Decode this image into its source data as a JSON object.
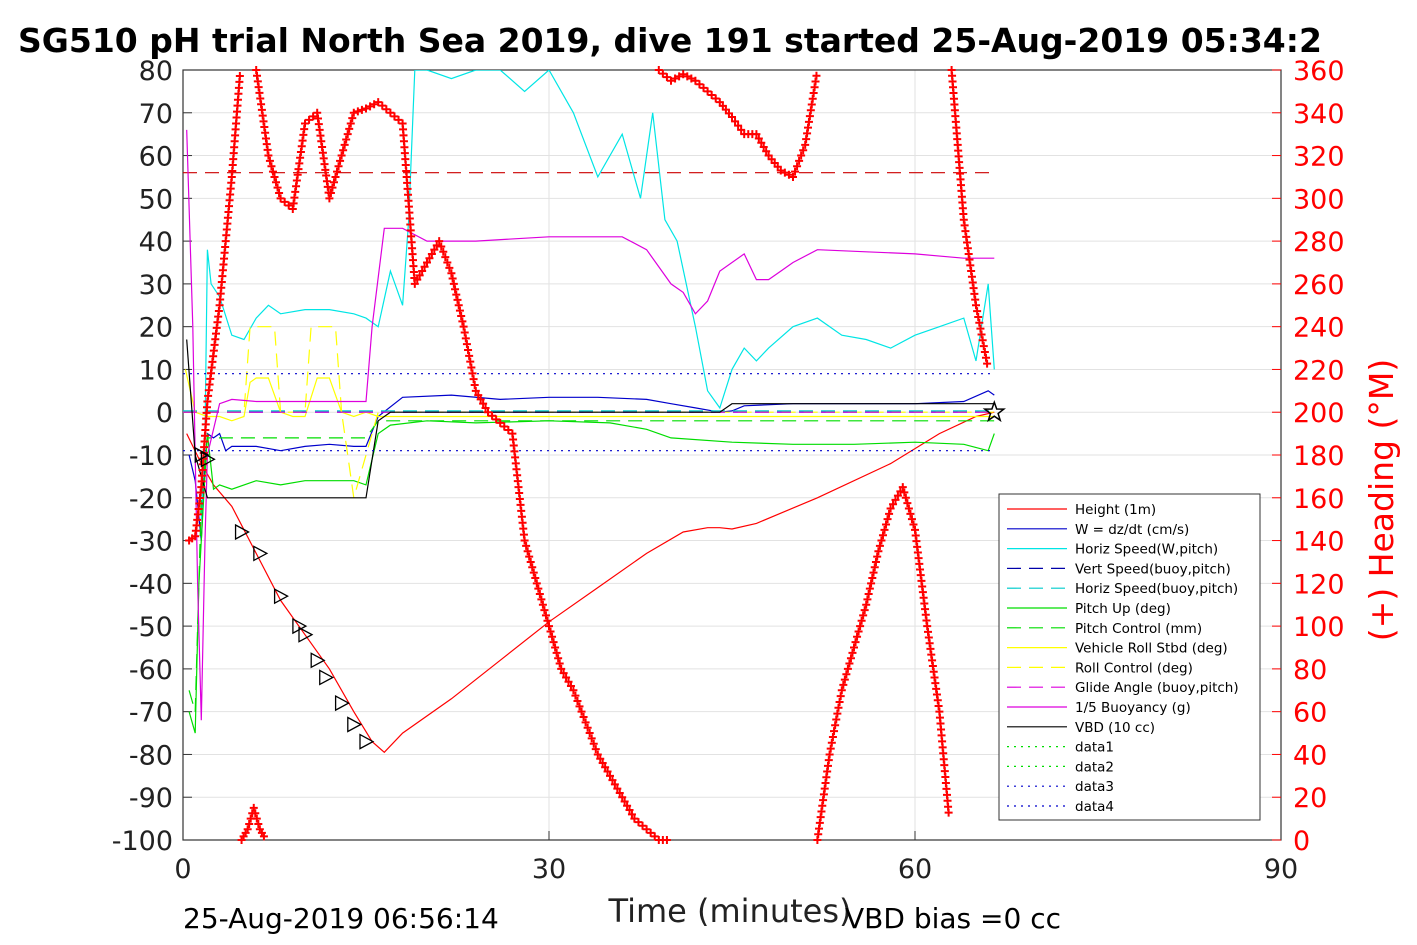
{
  "figure": {
    "title": "SG510 pH trial North Sea 2019, dive 191 started 25-Aug-2019 05:34:2",
    "footer_left": "25-Aug-2019 06:56:14",
    "footer_right": "VBD bias =0 cc"
  },
  "chart_data": {
    "type": "line",
    "xlabel": "Time (minutes)",
    "ylabel": "",
    "ylabel_right": "(+) Heading (°M)",
    "xlim": [
      0,
      90
    ],
    "ylim": [
      -100,
      80
    ],
    "ylim_right": [
      0,
      360
    ],
    "xticks": [
      0,
      30,
      60,
      90
    ],
    "yticks": [
      -100,
      -90,
      -80,
      -70,
      -60,
      -50,
      -40,
      -30,
      -20,
      -10,
      0,
      10,
      20,
      30,
      40,
      50,
      60,
      70,
      80
    ],
    "yticks_right": [
      0,
      20,
      40,
      60,
      80,
      100,
      120,
      140,
      160,
      180,
      200,
      220,
      240,
      260,
      280,
      300,
      320,
      340,
      360
    ],
    "grid": true,
    "legend_position": "right",
    "colors": {
      "red": "#ff0000",
      "blue": "#0000cc",
      "cyan": "#00e5e5",
      "green": "#00dd00",
      "yellow": "#ffff00",
      "magenta": "#dd00dd",
      "black": "#000000",
      "heading": "#ff0000"
    },
    "series": [
      {
        "name": "Height (1m)",
        "color": "#ff0000",
        "dash": "solid",
        "x": [
          0.3,
          1.5,
          2.5,
          4,
          6,
          8,
          10,
          12,
          14,
          15.5,
          16.5,
          18,
          22,
          26,
          30,
          34,
          38,
          41,
          43,
          44,
          45,
          47,
          52,
          58,
          62,
          65,
          66.5
        ],
        "y": [
          -5,
          -12,
          -17,
          -22,
          -33,
          -44,
          -52,
          -60,
          -70,
          -77,
          -79.5,
          -75,
          -67,
          -58,
          -49,
          -41,
          -33,
          -28,
          -27,
          -27,
          -27.3,
          -26,
          -20,
          -12,
          -5,
          -1,
          0
        ]
      },
      {
        "name": "W = dz/dt (cm/s)",
        "color": "#0000cc",
        "dash": "solid",
        "x": [
          0.5,
          1,
          1.5,
          1.8,
          2,
          2.5,
          3,
          3.5,
          4,
          6,
          8,
          10,
          12,
          14,
          15,
          16,
          18,
          22,
          26,
          30,
          34,
          38,
          40,
          42,
          44,
          45,
          46,
          50,
          55,
          60,
          64,
          66,
          66.5
        ],
        "y": [
          -10,
          -16,
          -30,
          -12,
          -5,
          -6,
          -5,
          -9,
          -8,
          -8,
          -9,
          -8,
          -7.5,
          -8,
          -8,
          -1,
          3.5,
          4,
          3,
          3.5,
          3.5,
          3,
          2,
          1,
          0,
          0.3,
          1.5,
          2,
          2,
          2,
          2.5,
          5,
          4
        ]
      },
      {
        "name": "Horiz Speed(W,pitch)",
        "color": "#00e5e5",
        "dash": "solid",
        "x": [
          1.5,
          1.8,
          2,
          2.3,
          3,
          4,
          5,
          6,
          7,
          8,
          10,
          12,
          14,
          15,
          16,
          17,
          18,
          18.5,
          19,
          20,
          22,
          24,
          26,
          28,
          30,
          32,
          34,
          36,
          37.5,
          38.5,
          39.5,
          40.5,
          42,
          43,
          44,
          45,
          46,
          47,
          48,
          50,
          52,
          54,
          56,
          58,
          60,
          62,
          64,
          65,
          66,
          66.5
        ],
        "y": [
          -25,
          -5,
          38,
          30,
          27,
          18,
          17,
          22,
          25,
          23,
          24,
          24,
          23,
          22,
          20,
          33,
          25,
          45,
          80,
          80,
          78,
          80,
          80,
          75,
          80,
          70,
          55,
          65,
          50,
          70,
          45,
          40,
          20,
          5,
          1,
          10,
          15,
          12,
          15,
          20,
          22,
          18,
          17,
          15,
          18,
          20,
          22,
          12,
          30,
          10
        ]
      },
      {
        "name": "Vert Speed(buoy,pitch)",
        "color": "#0000aa",
        "dash": "dashed",
        "x": [
          0,
          66.5
        ],
        "y": [
          0,
          0
        ]
      },
      {
        "name": "Horiz Speed(buoy,pitch)",
        "color": "#00cccc",
        "dash": "dashed",
        "x": [
          0,
          66.5
        ],
        "y": [
          0.3,
          0.3
        ]
      },
      {
        "name": "Pitch Up (deg)",
        "color": "#00dd00",
        "dash": "solid",
        "x": [
          0.5,
          1,
          1.3,
          1.7,
          2,
          2.5,
          3,
          4,
          6,
          8,
          10,
          12,
          14,
          15,
          16,
          17,
          20,
          24,
          30,
          35,
          38,
          40,
          45,
          50,
          55,
          60,
          64,
          66,
          66.5
        ],
        "y": [
          -70,
          -75,
          -40,
          -20,
          -5,
          -18,
          -17,
          -18,
          -16,
          -17,
          -16,
          -16,
          -16,
          -17,
          -5,
          -3,
          -2,
          -2.5,
          -2,
          -2.5,
          -4,
          -6,
          -7,
          -7.5,
          -7.5,
          -7,
          -7.5,
          -9,
          -5
        ]
      },
      {
        "name": "Pitch Control (mm)",
        "color": "#00dd00",
        "dash": "dashed",
        "x": [
          0.5,
          1,
          1.5,
          2,
          2.5,
          3,
          15,
          16,
          20,
          40,
          66.5
        ],
        "y": [
          -65,
          -70,
          -20,
          -6,
          -6,
          -6,
          -6,
          -2,
          -2,
          -2,
          -2
        ]
      },
      {
        "name": "Vehicle Roll Stbd (deg)",
        "color": "#ffff00",
        "dash": "solid",
        "x": [
          0.2,
          1,
          2,
          3,
          4,
          5,
          5.5,
          6,
          7,
          8,
          9,
          10,
          11,
          12,
          13,
          14,
          15,
          16,
          20,
          40,
          66.5
        ],
        "y": [
          10,
          0,
          -1,
          -1,
          -2,
          -1,
          7,
          8,
          8,
          0,
          -1,
          -1,
          8,
          8,
          0,
          -1,
          0,
          -1,
          -1,
          -1,
          -1
        ]
      },
      {
        "name": "Roll Control (deg)",
        "color": "#ffff00",
        "dash": "dashed",
        "x": [
          0,
          1,
          2,
          5,
          5.5,
          6,
          7.5,
          8,
          10,
          10.5,
          11,
          12.5,
          13,
          14,
          16,
          66.5
        ],
        "y": [
          0,
          0,
          0,
          0,
          20,
          20,
          20,
          0,
          0,
          20,
          20,
          20,
          0,
          -20,
          0,
          0
        ]
      },
      {
        "name": "Glide Angle (buoy,pitch)",
        "color": "#dd00dd",
        "dash": "dashed",
        "x": [
          0,
          66.5
        ],
        "y": [
          0,
          0
        ]
      },
      {
        "name": "1/5 Buoyancy (g)",
        "color": "#dd00dd",
        "dash": "solid",
        "x": [
          0.3,
          0.8,
          1.2,
          1.5,
          1.8,
          2,
          3,
          4,
          6,
          10,
          15,
          15.5,
          16.5,
          18,
          20,
          24,
          30,
          36,
          38,
          40,
          41,
          42,
          43,
          44,
          46,
          47,
          48,
          49,
          50,
          52,
          56,
          60,
          64,
          66.5
        ],
        "y": [
          66,
          20,
          -40,
          -72,
          -30,
          -10,
          2,
          3,
          2.5,
          2.5,
          2.5,
          20,
          43,
          43,
          40,
          40,
          41,
          41,
          38,
          30,
          28,
          23,
          26,
          33,
          37,
          31,
          31,
          33,
          35,
          38,
          37.5,
          37,
          36,
          36
        ]
      },
      {
        "name": "VBD (10 cc)",
        "color": "#000000",
        "dash": "solid",
        "x": [
          0.3,
          1,
          2,
          4,
          15,
          16,
          17,
          20,
          40,
          44,
          45,
          50,
          66.5
        ],
        "y": [
          17,
          -10,
          -20,
          -20,
          -20,
          -2,
          0,
          0,
          0,
          0,
          2,
          2,
          2
        ]
      },
      {
        "name": "data1",
        "color": "#00dd00",
        "dash": "dotted",
        "x": [],
        "y": []
      },
      {
        "name": "data2",
        "color": "#00dd00",
        "dash": "dotted",
        "x": [],
        "y": []
      },
      {
        "name": "data3",
        "color": "#0000cc",
        "dash": "dotted",
        "x": [
          0,
          66.5
        ],
        "y": [
          9,
          9
        ]
      },
      {
        "name": "data4",
        "color": "#0000cc",
        "dash": "dotted",
        "x": [
          0,
          66.5
        ],
        "y": [
          -9,
          -9
        ]
      }
    ],
    "heading": {
      "axis": "right",
      "marker": "+",
      "color": "#ff0000",
      "segments": [
        {
          "x": [
            0.5,
            1,
            1.5,
            2,
            3,
            4,
            4.7
          ],
          "y": [
            140,
            142,
            165,
            205,
            250,
            310,
            360
          ]
        },
        {
          "x": [
            6,
            7,
            8,
            9,
            10,
            11,
            12,
            13,
            14,
            15,
            16,
            17,
            18,
            19,
            20,
            21,
            22,
            23,
            24,
            25,
            26,
            27,
            28,
            29,
            30,
            31,
            32,
            33,
            34,
            35,
            36,
            37,
            38,
            39,
            40
          ],
          "y": [
            360,
            320,
            300,
            295,
            335,
            340,
            300,
            320,
            340,
            342,
            345,
            340,
            335,
            260,
            270,
            280,
            265,
            240,
            210,
            200,
            195,
            190,
            140,
            120,
            100,
            80,
            70,
            55,
            40,
            30,
            20,
            10,
            5,
            0,
            0
          ]
        },
        {
          "x": [
            4.8,
            5.3,
            5.8,
            6.3,
            6.8
          ],
          "y": [
            0,
            5,
            15,
            5,
            0
          ]
        },
        {
          "x": [
            39,
            40,
            41,
            42,
            43,
            44,
            45,
            46,
            47,
            48,
            49,
            50,
            51,
            52
          ],
          "y": [
            360,
            355,
            358,
            355,
            350,
            345,
            338,
            330,
            330,
            320,
            313,
            310,
            325,
            360
          ]
        },
        {
          "x": [
            52,
            53,
            54,
            55,
            56,
            57,
            58,
            59,
            60,
            61,
            62,
            62.8
          ],
          "y": [
            0,
            40,
            70,
            90,
            110,
            135,
            155,
            165,
            145,
            100,
            60,
            10
          ]
        },
        {
          "x": [
            63,
            64,
            65,
            66
          ],
          "y": [
            360,
            290,
            250,
            220
          ]
        }
      ]
    },
    "reference_line": {
      "axis": "right",
      "y": 312,
      "x": [
        0,
        66.5
      ],
      "color": "#cc0000",
      "dash": "dashed"
    },
    "markers_triangle": {
      "x": [
        1.5,
        2,
        4.8,
        6.3,
        8,
        9.5,
        10,
        11,
        11.7,
        13,
        14,
        15
      ],
      "y": [
        -10,
        -11,
        -28,
        -33,
        -43,
        -50,
        -52,
        -58,
        -62,
        -68,
        -73,
        -77
      ]
    }
  }
}
